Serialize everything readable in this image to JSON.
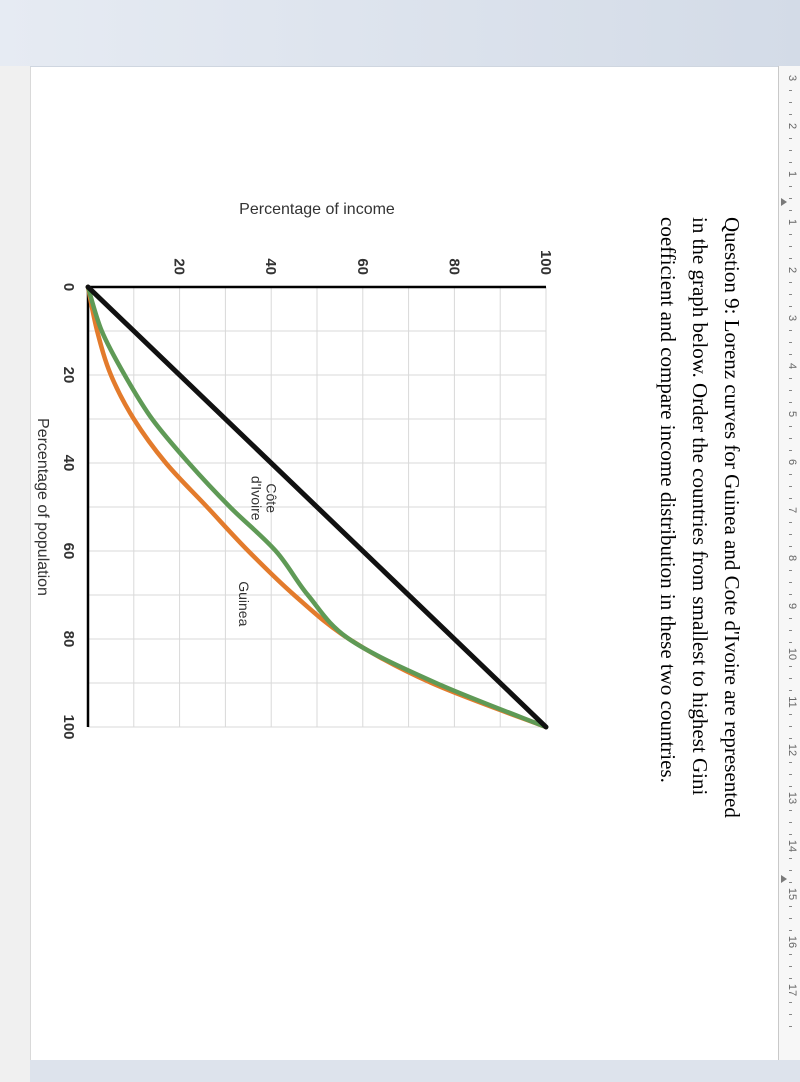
{
  "document": {
    "question_lines": [
      "Question 9: Lorenz curves for Guinea and Cote d'Ivoire are represented",
      "in the graph below. Order the countries from smallest to highest Gini",
      "coefficient and compare income distribution in these two countries."
    ]
  },
  "ruler": {
    "labels": [
      "3",
      "2",
      "1",
      "1",
      "2",
      "3",
      "4",
      "5",
      "6",
      "7",
      "8",
      "9",
      "10",
      "11",
      "12",
      "13",
      "14",
      "15",
      "16",
      "17"
    ]
  },
  "chart_data": {
    "type": "line",
    "xlabel": "Percentage of population",
    "ylabel": "Percentage of income",
    "xlim": [
      0,
      100
    ],
    "ylim": [
      0,
      100
    ],
    "x_ticks": [
      "0",
      "20",
      "40",
      "60",
      "80",
      "100"
    ],
    "y_ticks": [
      "20",
      "40",
      "60",
      "80",
      "100"
    ],
    "grid": true,
    "series": [
      {
        "name": "",
        "color": "#111111",
        "points": [
          [
            0,
            0
          ],
          [
            100,
            100
          ]
        ]
      },
      {
        "name": "Côte d'Ivoire",
        "color": "#5f9a56",
        "points": [
          [
            0,
            0
          ],
          [
            10,
            3
          ],
          [
            20,
            8
          ],
          [
            30,
            14
          ],
          [
            40,
            22
          ],
          [
            50,
            31
          ],
          [
            60,
            41
          ],
          [
            70,
            48
          ],
          [
            80,
            57
          ],
          [
            90,
            76
          ],
          [
            100,
            100
          ]
        ]
      },
      {
        "name": "Guinea",
        "color": "#e37b2c",
        "points": [
          [
            0,
            0
          ],
          [
            10,
            2
          ],
          [
            20,
            5
          ],
          [
            30,
            10
          ],
          [
            40,
            17
          ],
          [
            50,
            26
          ],
          [
            60,
            35
          ],
          [
            70,
            45
          ],
          [
            80,
            57
          ],
          [
            90,
            75
          ],
          [
            100,
            100
          ]
        ]
      }
    ],
    "annotations": [
      {
        "series": "Côte d'Ivoire",
        "lines": [
          "Côte",
          "d'Ivoire"
        ]
      },
      {
        "series": "Guinea",
        "lines": [
          "Guinea"
        ]
      }
    ]
  }
}
